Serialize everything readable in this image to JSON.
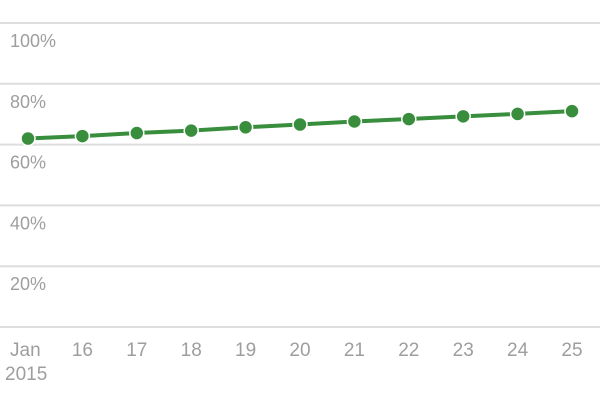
{
  "colors": {
    "series": "#388e3c",
    "grid": "#dddddd",
    "axis_text": "#9e9e9e",
    "background": "#ffffff"
  },
  "chart_data": {
    "type": "line",
    "title": "",
    "xlabel": "",
    "ylabel": "",
    "ylim": [
      0,
      100
    ],
    "y_ticks": [
      "100%",
      "80%",
      "60%",
      "40%",
      "20%"
    ],
    "y_tick_values": [
      100,
      80,
      60,
      40,
      20
    ],
    "categories": [
      "Jan 2015",
      "16",
      "17",
      "18",
      "19",
      "20",
      "21",
      "22",
      "23",
      "24",
      "25"
    ],
    "x_tick_labels": [
      [
        "Jan",
        "2015"
      ],
      [
        "16"
      ],
      [
        "17"
      ],
      [
        "18"
      ],
      [
        "19"
      ],
      [
        "20"
      ],
      [
        "21"
      ],
      [
        "22"
      ],
      [
        "23"
      ],
      [
        "24"
      ],
      [
        "25"
      ]
    ],
    "series": [
      {
        "values": [
          62,
          62.8,
          63.8,
          64.6,
          65.7,
          66.6,
          67.6,
          68.4,
          69.3,
          70.1,
          71
        ]
      }
    ],
    "grid": true,
    "legend": "none"
  }
}
